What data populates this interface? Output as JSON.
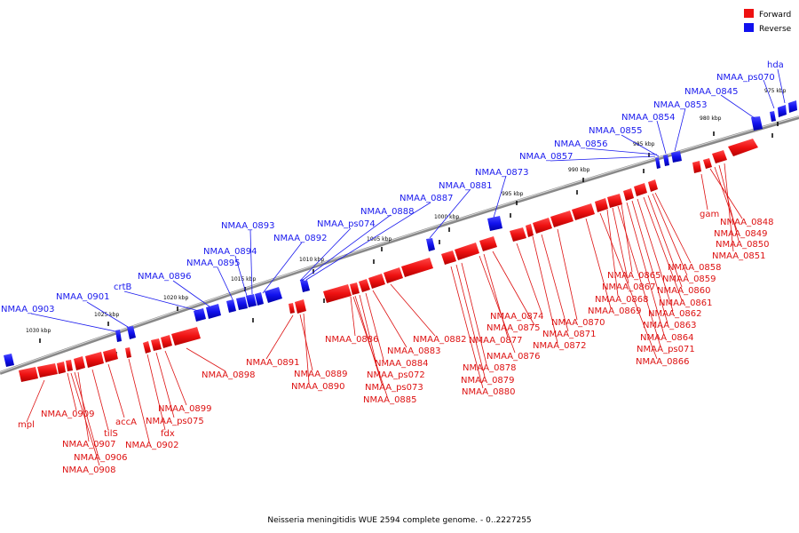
{
  "legend": {
    "forward_label": "Forward",
    "reverse_label": "Reverse",
    "forward_color": "#ee1111",
    "reverse_color": "#1111ee"
  },
  "caption": "Neisseria meningitidis WUE 2594 complete genome. - 0..2227255",
  "kbp_ticks": [
    "975 kbp",
    "980 kbp",
    "985 kbp",
    "990 kbp",
    "995 kbp",
    "1000 kbp",
    "1005 kbp",
    "1010 kbp",
    "1015 kbp",
    "1020 kbp",
    "1025 kbp",
    "1030 kbp"
  ],
  "reverse_genes": [
    "hda",
    "NMAA_ps070",
    "NMAA_0845",
    "NMAA_0853",
    "NMAA_0854",
    "NMAA_0855",
    "NMAA_0856",
    "NMAA_0857",
    "NMAA_0873",
    "NMAA_0881",
    "NMAA_0887",
    "NMAA_0888",
    "NMAA_ps074",
    "NMAA_0893",
    "NMAA_0892",
    "NMAA_0894",
    "NMAA_0895",
    "NMAA_0896",
    "crtB",
    "NMAA_0901",
    "NMAA_0903"
  ],
  "forward_genes": [
    "gam",
    "NMAA_0848",
    "NMAA_0849",
    "NMAA_0850",
    "NMAA_0851",
    "NMAA_0858",
    "NMAA_0865",
    "NMAA_0859",
    "NMAA_0867",
    "NMAA_0860",
    "NMAA_0868",
    "NMAA_0861",
    "NMAA_0869",
    "NMAA_0862",
    "NMAA_0874",
    "NMAA_0870",
    "NMAA_0863",
    "NMAA_0875",
    "NMAA_0871",
    "NMAA_0864",
    "NMAA_0877",
    "NMAA_0872",
    "NMAA_ps071",
    "NMAA_0876",
    "NMAA_0866",
    "NMAA_0886",
    "NMAA_0882",
    "NMAA_0883",
    "NMAA_0878",
    "NMAA_0884",
    "NMAA_0879",
    "NMAA_ps072",
    "NMAA_0880",
    "NMAA_ps073",
    "NMAA_0885",
    "NMAA_0891",
    "NMAA_0889",
    "NMAA_0890",
    "NMAA_0898",
    "NMAA_0899",
    "NMAA_ps075",
    "fdx",
    "NMAA_0902",
    "accA",
    "tilS",
    "NMAA_0909",
    "mpl",
    "NMAA_0907",
    "NMAA_0906",
    "NMAA_0908"
  ]
}
